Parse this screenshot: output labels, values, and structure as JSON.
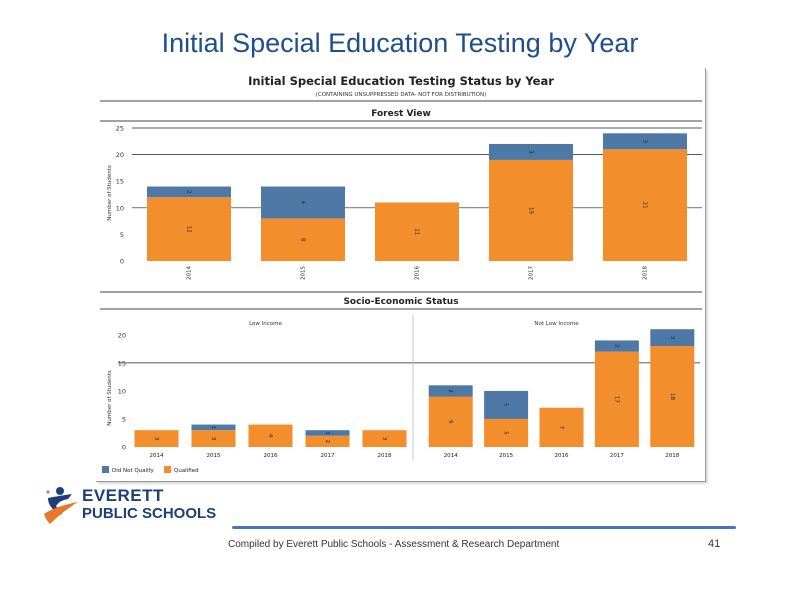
{
  "slide": {
    "title": "Initial Special Education Testing by Year",
    "footer": "Compiled  by Everett Public Schools - Assessment & Research Department",
    "page_number": "41"
  },
  "logo": {
    "line1": "EVERETT",
    "line2": "PUBLIC SCHOOLS"
  },
  "colors": {
    "did_not_qualify": "#4e79a7",
    "qualified": "#f28e2b"
  },
  "chart_data": [
    {
      "type": "bar",
      "stacked": true,
      "title": "Initial Special Education Testing Status by Year",
      "subtitle": "(CONTAINING UNSUPPRESSED DATA- NOT FOR DISTRIBUTION)",
      "panel_title": "Forest View",
      "ylabel": "Number of Students",
      "ylim": [
        0,
        25
      ],
      "yticks": [
        0,
        5,
        10,
        15,
        20,
        25
      ],
      "categories": [
        "2014",
        "2015",
        "2016",
        "2017",
        "2018"
      ],
      "series": [
        {
          "name": "Qualified",
          "values": [
            12,
            8,
            11,
            19,
            21
          ],
          "labels": [
            "12",
            "8",
            "11",
            "19",
            "21"
          ]
        },
        {
          "name": "Did Not Qualify",
          "values": [
            2,
            6,
            0,
            3,
            3
          ],
          "labels": [
            "2",
            "6",
            "",
            "3",
            "3"
          ]
        }
      ],
      "grid": true
    },
    {
      "type": "bar",
      "stacked": true,
      "panel_title": "Socio-Economic Status",
      "ylabel": "Number of Students",
      "ylim": [
        0,
        23
      ],
      "yticks": [
        0,
        5,
        10,
        15,
        20
      ],
      "groups": [
        {
          "name": "Low Income",
          "categories": [
            "2014",
            "2015",
            "2016",
            "2017",
            "2018"
          ],
          "series": [
            {
              "name": "Qualified",
              "values": [
                3,
                3,
                4,
                2,
                3
              ],
              "labels": [
                "3",
                "3",
                "4",
                "2",
                "3"
              ]
            },
            {
              "name": "Did Not Qualify",
              "values": [
                0,
                1,
                0,
                1,
                0
              ],
              "labels": [
                "",
                "1",
                "",
                "1",
                ""
              ]
            }
          ]
        },
        {
          "name": "Not Low Income",
          "categories": [
            "2014",
            "2015",
            "2016",
            "2017",
            "2018"
          ],
          "series": [
            {
              "name": "Qualified",
              "values": [
                9,
                5,
                7,
                17,
                18
              ],
              "labels": [
                "9",
                "5",
                "7",
                "17",
                "18"
              ]
            },
            {
              "name": "Did Not Qualify",
              "values": [
                2,
                5,
                0,
                2,
                3
              ],
              "labels": [
                "2",
                "5",
                "",
                "2",
                "3"
              ]
            }
          ]
        }
      ],
      "legend": {
        "placement": "bottom-left",
        "items": [
          "Did Not Qualify",
          "Qualified"
        ]
      },
      "grid": true
    }
  ]
}
